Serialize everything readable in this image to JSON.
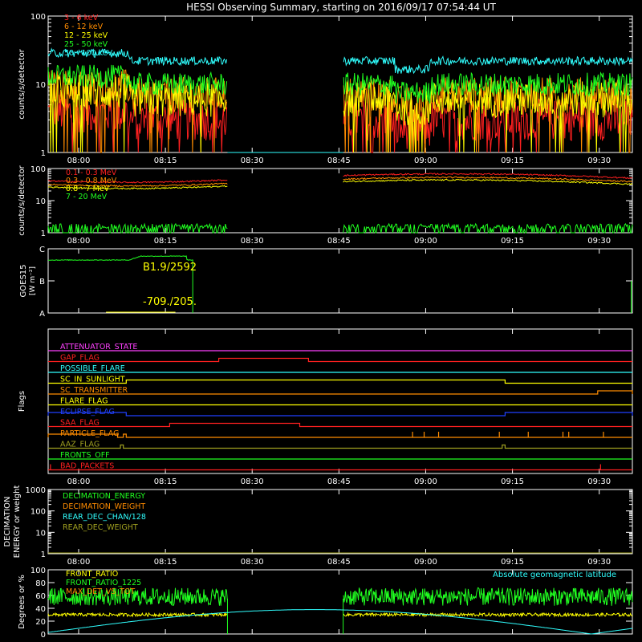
{
  "title": "HESSI Observing Summary, starting on 2016/09/17 07:54:44 UT",
  "colors": {
    "bg": "#000000",
    "axis": "#ffffff",
    "red": "#ff2020",
    "orange": "#ff8c00",
    "yellow": "#ffff00",
    "green": "#20ff20",
    "cyan": "#30ffff",
    "magenta": "#ff40ff",
    "blue": "#2040ff",
    "olive": "#a0a020"
  },
  "x_ticks": [
    "08:00",
    "08:15",
    "08:30",
    "08:45",
    "09:00",
    "09:15",
    "09:30"
  ],
  "x_range_minutes": [
    0,
    101
  ],
  "chart_data": [
    {
      "type": "line",
      "panel": "lightcurve-low",
      "ylabel": "counts/s/detector",
      "yscale": "log",
      "ylim": [
        1,
        100
      ],
      "y_ticks": [
        "1",
        "10",
        "100"
      ],
      "gaps": [
        [
          31,
          51
        ]
      ],
      "series": [
        {
          "name": "3 - 6 keV",
          "color": "#ff2020",
          "level": 3.0,
          "spread": 1.6,
          "floor": 1
        },
        {
          "name": "6 - 12 keV",
          "color": "#ff8c00",
          "level": 7,
          "spread": 1.5,
          "floor": 1
        },
        {
          "name": "12 - 25 keV",
          "color": "#ffff00",
          "level": 6,
          "spread": 1.5,
          "floor": 1
        },
        {
          "name": "25 - 50 keV",
          "color": "#20ff20",
          "level": 10,
          "spread": 1.3,
          "floor": 1
        },
        {
          "name": "50 - 100 keV",
          "color": "#30ffff",
          "level": 22,
          "spread": 1.1,
          "floor": 1
        }
      ]
    },
    {
      "type": "line",
      "panel": "lightcurve-high",
      "ylabel": "counts/s/detector",
      "yscale": "log",
      "ylim": [
        1,
        100
      ],
      "y_ticks": [
        "1",
        "10",
        "100"
      ],
      "gaps": [
        [
          31,
          51
        ]
      ],
      "series": [
        {
          "name": "0.1 - 0.3 MeV",
          "color": "#ff2020",
          "level": 62
        },
        {
          "name": "0.3 - 0.8 MeV",
          "color": "#ff8c00",
          "level": 48
        },
        {
          "name": "0.8 - 7 MeV",
          "color": "#ffff00",
          "level": 40
        },
        {
          "name": "7 - 20 MeV",
          "color": "#20ff20",
          "level": 1.4
        }
      ]
    },
    {
      "type": "line",
      "panel": "goes",
      "ylabel": "GOES15",
      "yunit": "[W m⁻²]",
      "y_ticks": [
        "A",
        "B",
        "C"
      ],
      "annotations": [
        "B1.9/2592",
        "-709./205."
      ],
      "series": [
        {
          "name": "GOES",
          "color": "#20ff20",
          "level": 1.65,
          "end_minute": 25
        }
      ]
    },
    {
      "type": "table",
      "panel": "flags",
      "ylabel": "Flags",
      "flags": [
        {
          "name": "ATTENUATOR_STATE",
          "color": "#ff40ff",
          "segments": []
        },
        {
          "name": "GAP_FLAG",
          "color": "#ff2020",
          "segments": [
            [
              29.5,
              45
            ]
          ]
        },
        {
          "name": "POSSIBLE_FLARE",
          "color": "#30ffff",
          "segments": []
        },
        {
          "name": "SC_IN_SUNLIGHT",
          "color": "#ffff00",
          "segments": [
            [
              13.5,
              79
            ]
          ]
        },
        {
          "name": "SC_TRANSMITTER",
          "color": "#ff8c00",
          "segments": [
            [
              95,
              101
            ]
          ]
        },
        {
          "name": "FLARE_FLAG",
          "color": "#ffff00",
          "segments": []
        },
        {
          "name": "ECLIPSE_FLAG",
          "color": "#2040ff",
          "segments": [
            [
              0,
              13.5
            ],
            [
              79,
              101
            ]
          ]
        },
        {
          "name": "SAA_FLAG",
          "color": "#ff2020",
          "segments": [
            [
              21,
              43.5
            ]
          ]
        },
        {
          "name": "PARTICLE_FLAG",
          "color": "#ff8c00",
          "segments": [
            [
              0,
              12
            ],
            [
              13,
              13.5
            ]
          ],
          "spikes": [
            63,
            65,
            67.5,
            78,
            83,
            89,
            90,
            96
          ]
        },
        {
          "name": "AAZ_FLAG",
          "color": "#a0a020",
          "segments": [
            [
              12.5,
              13
            ],
            [
              78.5,
              79
            ]
          ]
        },
        {
          "name": "FRONTS_OFF",
          "color": "#20ff20",
          "segments": []
        },
        {
          "name": "BAD_PACKETS",
          "color": "#ff2020",
          "segments": [],
          "spikes": [
            0.4,
            95.5
          ]
        }
      ]
    },
    {
      "type": "line",
      "panel": "decimation",
      "ylabel": "DECIMATION ENERGY or weight",
      "yscale": "log",
      "ylim": [
        1,
        1000
      ],
      "y_ticks": [
        "1",
        "10",
        "100",
        "1000"
      ],
      "series": [
        {
          "name": "DECIMATION_ENERGY",
          "color": "#20ff20"
        },
        {
          "name": "DECIMATION_WEIGHT",
          "color": "#ff8c00"
        },
        {
          "name": "REAR_DEC_CHAN/128",
          "color": "#30ffff"
        },
        {
          "name": "REAR_DEC_WEIGHT",
          "color": "#a0a020"
        }
      ]
    },
    {
      "type": "line",
      "panel": "ratio",
      "ylabel": "Degrees or %",
      "ylim": [
        0,
        100
      ],
      "y_ticks": [
        "0",
        "20",
        "40",
        "60",
        "80",
        "100"
      ],
      "legend_right": "Absolute geomagnetic latitude",
      "series": [
        {
          "name": "FRONT_RATIO",
          "color": "#ffff00",
          "level": 30
        },
        {
          "name": "FRONT_RATIO_1225",
          "color": "#20ff20",
          "level": 58
        },
        {
          "name": "MAX_DET_VS_TOT",
          "color": "#ff8c00",
          "level": 0
        },
        {
          "name": "Absolute geomagnetic latitude",
          "color": "#30ffff"
        }
      ]
    }
  ]
}
